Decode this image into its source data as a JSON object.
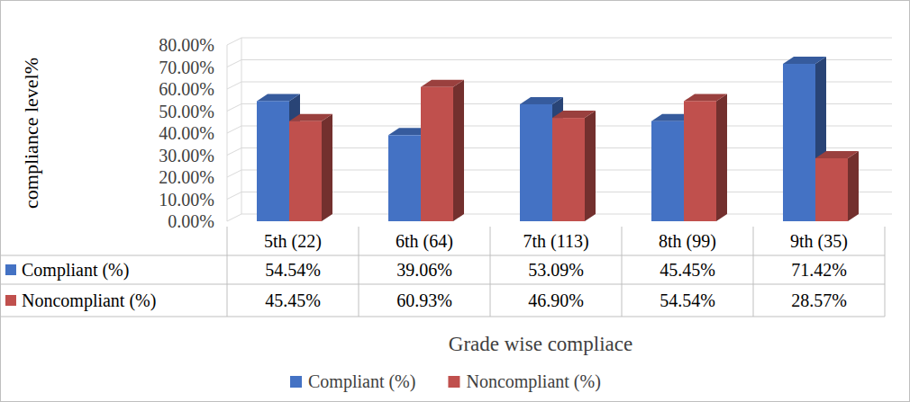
{
  "chart_data": {
    "type": "bar",
    "x_label": "Grade wise compliace",
    "y_label": "compliance level%",
    "categories": [
      "5th (22)",
      "6th (64)",
      "7th (113)",
      "8th (99)",
      "9th (35)"
    ],
    "series": [
      {
        "name": "Compliant (%)",
        "color": "#4472c4",
        "values": [
          54.54,
          39.06,
          53.09,
          45.45,
          71.42
        ],
        "value_labels": [
          "54.54%",
          "39.06%",
          "53.09%",
          "45.45%",
          "71.42%"
        ]
      },
      {
        "name": "Noncompliant (%)",
        "color": "#c0504d",
        "values": [
          45.45,
          60.93,
          46.9,
          54.54,
          28.57
        ],
        "value_labels": [
          "45.45%",
          "60.93%",
          "46.90%",
          "54.54%",
          "28.57%"
        ]
      }
    ],
    "ylim": [
      0,
      80
    ],
    "yticks": [
      {
        "value": 0,
        "label": "0.00%"
      },
      {
        "value": 10,
        "label": "10.00%"
      },
      {
        "value": 20,
        "label": "20.00%"
      },
      {
        "value": 30,
        "label": "30.00%"
      },
      {
        "value": 40,
        "label": "40.00%"
      },
      {
        "value": 50,
        "label": "50.00%"
      },
      {
        "value": 60,
        "label": "60.00%"
      },
      {
        "value": 70,
        "label": "70.00%"
      },
      {
        "value": 80,
        "label": "80.00%"
      }
    ],
    "grid": true,
    "legend": "bottom"
  }
}
